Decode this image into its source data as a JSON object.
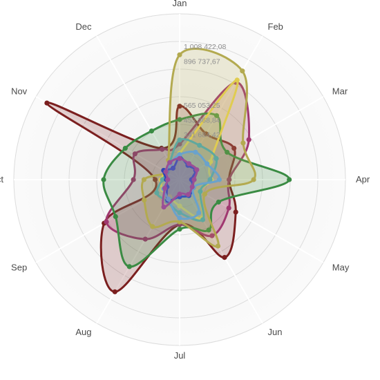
{
  "chart_data": {
    "type": "radar",
    "axes": [
      "Jan",
      "Feb",
      "Mar",
      "Apr",
      "May",
      "Jun",
      "Jul",
      "Aug",
      "Sep",
      "Oct",
      "Nov",
      "Dec"
    ],
    "radial_ticks": [
      "1 008 422,08",
      "896 737,67",
      "565 053,25",
      "453 368,84",
      "341 684,42"
    ],
    "radial_tick_values": [
      1008422.08,
      896737.67,
      565053.25,
      453368.84,
      341684.42
    ],
    "series": [
      {
        "color": "#7b1f1f",
        "values": [
          556000,
          400000,
          475000,
          375000,
          490000,
          680000,
          340000,
          980000,
          660000,
          185000,
          1160000,
          275000
        ]
      },
      {
        "color": "#a03870",
        "values": [
          270000,
          850000,
          605000,
          375000,
          430000,
          490000,
          340000,
          520000,
          640000,
          350000,
          390000,
          265000
        ]
      },
      {
        "color": "#3a8b43",
        "values": [
          455000,
          560000,
          415000,
          830000,
          340000,
          440000,
          375000,
          760000,
          560000,
          575000,
          475000,
          425000
        ]
      },
      {
        "color": "#b3aa50",
        "values": [
          945000,
          950000,
          555000,
          560000,
          220000,
          580000,
          320000,
          410000,
          310000,
          270000,
          110000,
          170000
        ]
      },
      {
        "color": "#e0cc50",
        "values": [
          200000,
          870000,
          270000,
          240000,
          180000,
          340000,
          200000,
          150000,
          150000,
          140000,
          120000,
          150000
        ]
      },
      {
        "color": "#5fa89e",
        "values": [
          300000,
          300000,
          320000,
          230000,
          180000,
          350000,
          250000,
          190000,
          200000,
          130000,
          110000,
          150000
        ]
      },
      {
        "color": "#2f44b5",
        "values": [
          170000,
          125000,
          140000,
          90000,
          120000,
          140000,
          130000,
          180000,
          110000,
          100000,
          140000,
          100000
        ]
      },
      {
        "color": "#6aa2cc",
        "values": [
          190000,
          240000,
          240000,
          300000,
          120000,
          290000,
          290000,
          170000,
          140000,
          90000,
          120000,
          140000
        ]
      },
      {
        "color": "#9a4f96",
        "values": [
          160000,
          140000,
          150000,
          110000,
          110000,
          130000,
          110000,
          240000,
          130000,
          90000,
          120000,
          150000
        ]
      }
    ]
  }
}
